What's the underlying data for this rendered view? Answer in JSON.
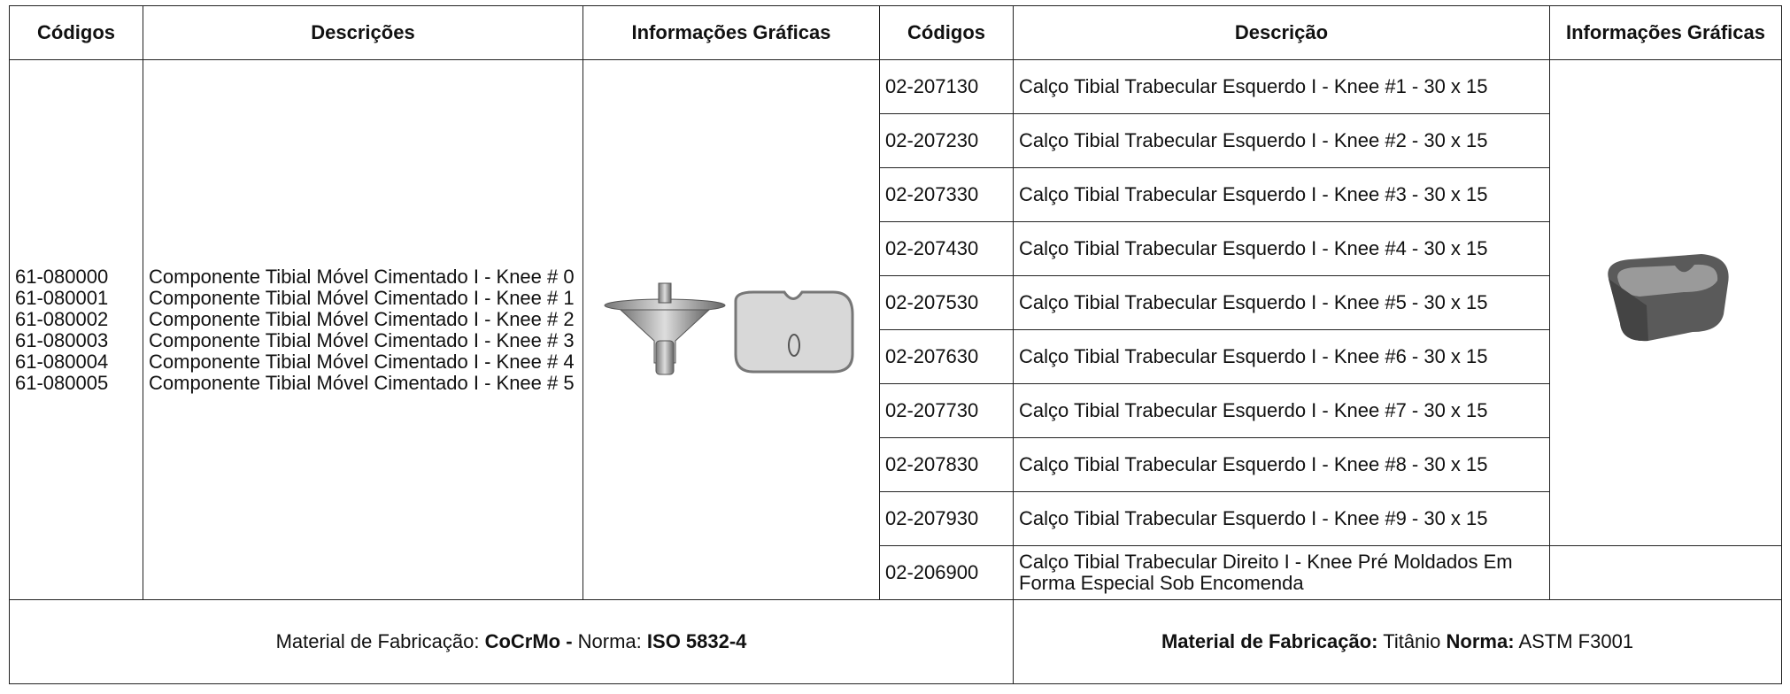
{
  "table": {
    "headers": [
      "Códigos",
      "Descrições",
      "Informações Gráficas",
      "Códigos",
      "Descrição",
      "Informações Gráficas"
    ],
    "left_codes": [
      "61-080000",
      "61-080001",
      "61-080002",
      "61-080003",
      "61-080004",
      "61-080005"
    ],
    "left_descriptions": [
      "Componente Tibial Móvel Cimentado I - Knee # 0",
      "Componente Tibial Móvel Cimentado I - Knee # 1",
      "Componente Tibial Móvel Cimentado I - Knee # 2",
      "Componente Tibial Móvel Cimentado I - Knee # 3",
      "Componente Tibial Móvel Cimentado I - Knee # 4",
      "Componente Tibial Móvel Cimentado I - Knee # 5"
    ],
    "rows": [
      [
        "02-207130",
        "Calço Tibial Trabecular Esquerdo I - Knee #1 - 30 x 15"
      ],
      [
        "02-207230",
        "Calço Tibial Trabecular Esquerdo I - Knee #2 - 30 x 15"
      ],
      [
        "02-207330",
        "Calço Tibial Trabecular Esquerdo I - Knee #3 - 30 x 15"
      ],
      [
        "02-207430",
        "Calço Tibial Trabecular Esquerdo I - Knee #4 - 30 x 15"
      ],
      [
        "02-207530",
        "Calço Tibial Trabecular Esquerdo I - Knee #5 - 30 x 15"
      ],
      [
        "02-207630",
        "Calço Tibial Trabecular Esquerdo I - Knee #6 - 30 x 15"
      ],
      [
        "02-207730",
        "Calço Tibial Trabecular Esquerdo I - Knee #7 - 30 x 15"
      ],
      [
        "02-207830",
        "Calço Tibial Trabecular Esquerdo I - Knee #8 - 30 x 15"
      ],
      [
        "02-207930",
        "Calço Tibial Trabecular Esquerdo I - Knee #9 - 30 x 15"
      ],
      [
        "02-206900",
        "Calço Tibial Trabecular Direito I - Knee Pré Moldados Em Forma Especial Sob Encomenda"
      ]
    ],
    "footer_left": [
      "Material de Fabricação: ",
      "CoCrMo -",
      " Norma: ",
      "ISO 5832-4"
    ],
    "footer_right": [
      "Material de Fabricação:",
      " Titânio ",
      "Norma:",
      " ASTM F3001"
    ]
  }
}
